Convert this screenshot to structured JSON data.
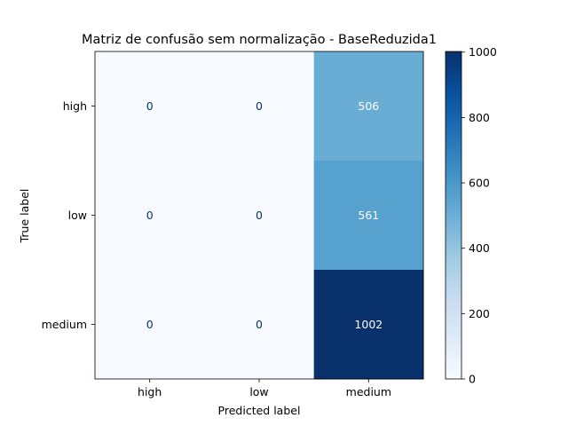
{
  "chart_data": {
    "type": "heatmap",
    "title": "Matriz de confusão sem normalização - BaseReduzida1",
    "xlabel": "Predicted label",
    "ylabel": "True label",
    "x_categories": [
      "high",
      "low",
      "medium"
    ],
    "y_categories": [
      "high",
      "low",
      "medium"
    ],
    "matrix": [
      [
        0,
        0,
        506
      ],
      [
        0,
        0,
        561
      ],
      [
        0,
        0,
        1002
      ]
    ],
    "colorbar": {
      "min": 0,
      "max": 1002,
      "ticks": [
        0,
        200,
        400,
        600,
        800,
        1000
      ]
    },
    "colormap": "Blues",
    "grid": false
  }
}
